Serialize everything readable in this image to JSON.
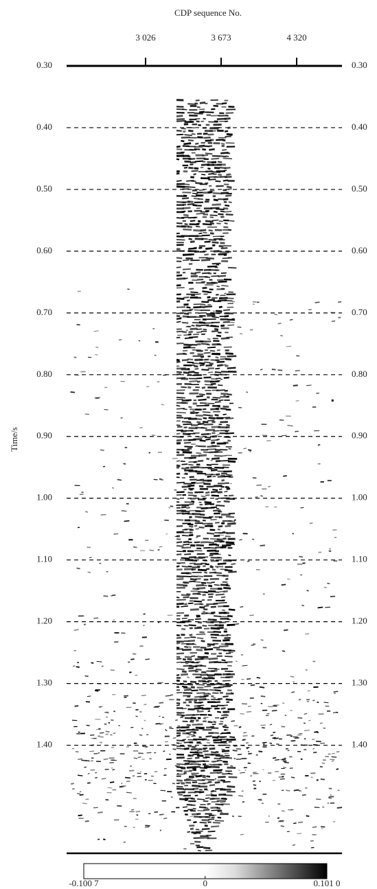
{
  "chart_data": {
    "type": "seismic-section",
    "title": "CDP sequence No.",
    "y_label": "Time/s",
    "xlim": [
      2350,
      4708
    ],
    "xticks": [
      {
        "value": 3026,
        "label": "3 026"
      },
      {
        "value": 3673,
        "label": "3 673"
      },
      {
        "value": 4320,
        "label": "4 320"
      }
    ],
    "ylim": [
      0.3,
      1.575
    ],
    "yticks": [
      {
        "value": 0.3,
        "label": "0.30"
      },
      {
        "value": 0.4,
        "label": "0.40"
      },
      {
        "value": 0.5,
        "label": "0.50"
      },
      {
        "value": 0.6,
        "label": "0.60"
      },
      {
        "value": 0.7,
        "label": "0.70"
      },
      {
        "value": 0.8,
        "label": "0.80"
      },
      {
        "value": 0.9,
        "label": "0.90"
      },
      {
        "value": 1.0,
        "label": "1.00"
      },
      {
        "value": 1.1,
        "label": "1.10"
      },
      {
        "value": 1.2,
        "label": "1.20"
      },
      {
        "value": 1.3,
        "label": "1.30"
      },
      {
        "value": 1.4,
        "label": "1.40"
      }
    ],
    "grid": true,
    "colorbar": {
      "lim": [
        -0.1007,
        0.101
      ],
      "ticks": [
        {
          "value": -0.1007,
          "label": "-0.100 7"
        },
        0,
        {
          "value": 0.101,
          "label": "0.101 0"
        }
      ]
    }
  }
}
